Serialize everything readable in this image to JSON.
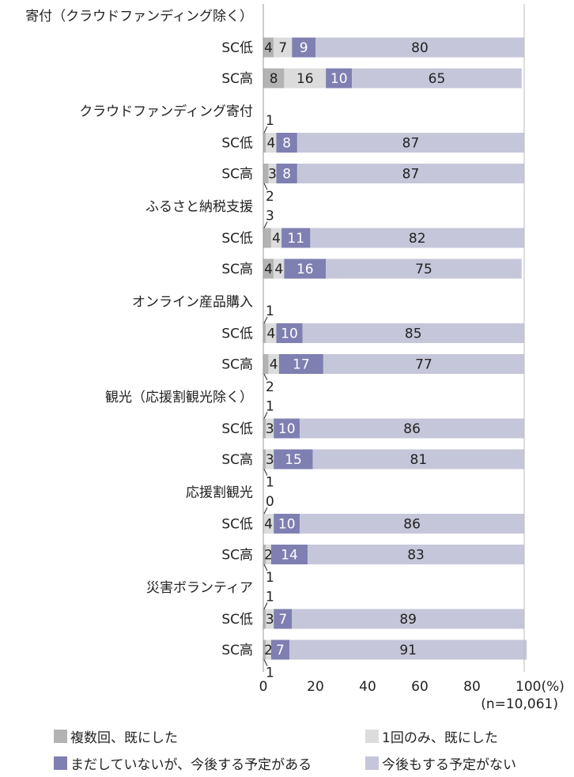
{
  "chart_data": {
    "type": "bar",
    "orientation": "horizontal",
    "stacked": true,
    "xlim": [
      0,
      100
    ],
    "x_ticks": [
      "0",
      "20",
      "40",
      "60",
      "80",
      "100(%)"
    ],
    "note": "(n=10,061)",
    "grid": false,
    "legend_position": "bottom",
    "groups": [
      {
        "label": "寄付（クラウドファンディング除く）",
        "rows": [
          {
            "label": "SC低",
            "values": [
              4,
              7,
              9,
              80
            ]
          },
          {
            "label": "SC高",
            "values": [
              8,
              16,
              10,
              65
            ]
          }
        ]
      },
      {
        "label": "クラウドファンディング寄付",
        "rows": [
          {
            "label": "SC低",
            "values": [
              1,
              4,
              8,
              87
            ]
          },
          {
            "label": "SC高",
            "values": [
              2,
              3,
              8,
              87
            ]
          }
        ]
      },
      {
        "label": "ふるさと納税支援",
        "rows": [
          {
            "label": "SC低",
            "values": [
              3,
              4,
              11,
              82
            ]
          },
          {
            "label": "SC高",
            "values": [
              4,
              4,
              16,
              75
            ]
          }
        ]
      },
      {
        "label": "オンライン産品購入",
        "rows": [
          {
            "label": "SC低",
            "values": [
              1,
              4,
              10,
              85
            ]
          },
          {
            "label": "SC高",
            "values": [
              2,
              4,
              17,
              77
            ]
          }
        ]
      },
      {
        "label": "観光（応援割観光除く）",
        "rows": [
          {
            "label": "SC低",
            "values": [
              1,
              3,
              10,
              86
            ]
          },
          {
            "label": "SC高",
            "values": [
              1,
              3,
              15,
              81
            ]
          }
        ]
      },
      {
        "label": "応援割観光",
        "rows": [
          {
            "label": "SC低",
            "values": [
              0,
              4,
              10,
              86
            ]
          },
          {
            "label": "SC高",
            "values": [
              1,
              2,
              14,
              83
            ]
          }
        ]
      },
      {
        "label": "災害ボランティア",
        "rows": [
          {
            "label": "SC低",
            "values": [
              1,
              3,
              7,
              89
            ]
          },
          {
            "label": "SC高",
            "values": [
              1,
              2,
              7,
              91
            ]
          }
        ]
      }
    ],
    "series": [
      {
        "name": "複数回、既にした",
        "color": "#b3b3b3"
      },
      {
        "name": "1回のみ、既にした",
        "color": "#dcdcdc"
      },
      {
        "name": "まだしていないが、今後する予定がある",
        "color": "#7f7fb2"
      },
      {
        "name": "今後もする予定がない",
        "color": "#c5c6da"
      }
    ]
  }
}
